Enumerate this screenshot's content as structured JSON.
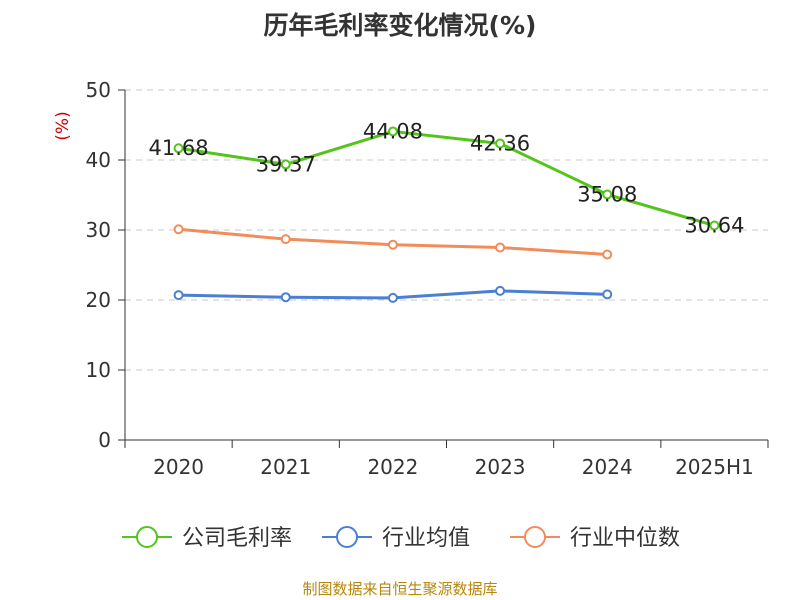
{
  "title": "历年毛利率变化情况(%)",
  "source": "制图数据来自恒生聚源数据库",
  "chart_data": {
    "type": "line",
    "title": "历年毛利率变化情况(%)",
    "ylabel": "(%)",
    "xlabel": "",
    "categories": [
      "2020",
      "2021",
      "2022",
      "2023",
      "2024",
      "2025H1"
    ],
    "ylim": [
      0,
      50
    ],
    "yticks": [
      0,
      10,
      20,
      30,
      40,
      50
    ],
    "grid": true,
    "legend_position": "bottom",
    "series": [
      {
        "name": "公司毛利率",
        "color": "#52c41a",
        "values": [
          41.68,
          39.37,
          44.08,
          42.36,
          35.08,
          30.64
        ],
        "labels": [
          "41.68",
          "39.37",
          "44.08",
          "42.36",
          "35.08",
          "30.64"
        ]
      },
      {
        "name": "行业均值",
        "color": "#4a7fd4",
        "values": [
          20.7,
          20.4,
          20.3,
          21.3,
          20.8,
          null
        ]
      },
      {
        "name": "行业中位数",
        "color": "#f28c5a",
        "values": [
          30.1,
          28.7,
          27.9,
          27.5,
          26.5,
          null
        ]
      }
    ]
  }
}
